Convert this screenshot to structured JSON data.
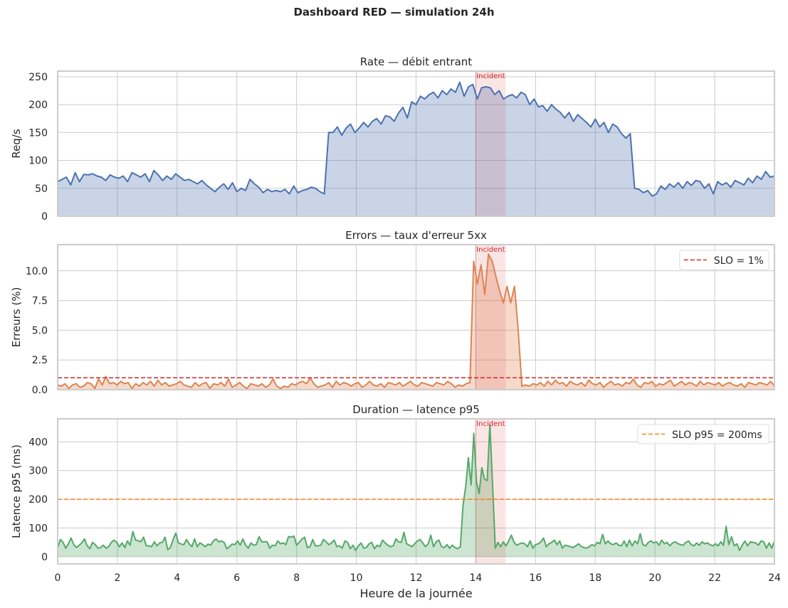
{
  "figure": {
    "title": "Dashboard RED — simulation 24h",
    "xlabel": "Heure de la journée",
    "xticks": [
      0,
      2,
      4,
      6,
      8,
      10,
      12,
      14,
      16,
      18,
      20,
      22,
      24
    ],
    "xlim": [
      0,
      24
    ],
    "incident": {
      "start": 14,
      "end": 15,
      "label": "Incident",
      "color": "#d62728"
    }
  },
  "chart_data": [
    {
      "type": "area",
      "title": "Rate — débit entrant",
      "xlabel": "",
      "ylabel": "Req/s",
      "ylim": [
        0,
        260
      ],
      "yticks": [
        0,
        50,
        100,
        150,
        200,
        250
      ],
      "ytick_labels": [
        "0",
        "50",
        "100",
        "150",
        "200",
        "250"
      ],
      "color": "#4c72b0",
      "fill": "#c8d3e5",
      "x_step_h": 0.25,
      "series": [
        {
          "name": "Rate",
          "values": [
            62,
            66,
            70,
            56,
            78,
            62,
            75,
            74,
            76,
            72,
            70,
            64,
            74,
            70,
            68,
            72,
            62,
            78,
            74,
            70,
            76,
            62,
            82,
            74,
            64,
            72,
            66,
            76,
            70,
            64,
            66,
            62,
            58,
            64,
            56,
            50,
            44,
            52,
            58,
            48,
            60,
            44,
            50,
            46,
            66,
            58,
            52,
            42,
            48,
            44,
            46,
            44,
            48,
            40,
            54,
            42,
            46,
            48,
            52,
            50,
            44,
            40,
            150,
            150,
            160,
            145,
            158,
            165,
            150,
            158,
            168,
            160,
            170,
            175,
            165,
            180,
            178,
            170,
            185,
            195,
            176,
            205,
            200,
            215,
            210,
            218,
            222,
            212,
            225,
            218,
            228,
            222,
            240,
            215,
            232,
            236,
            210,
            230,
            232,
            230,
            218,
            225,
            210,
            215,
            218,
            212,
            222,
            218,
            200,
            210,
            196,
            198,
            188,
            200,
            192,
            186,
            176,
            186,
            170,
            182,
            175,
            168,
            160,
            174,
            160,
            168,
            150,
            165,
            160,
            148,
            140,
            148,
            50,
            48,
            42,
            46,
            36,
            40,
            54,
            48,
            58,
            52,
            60,
            50,
            62,
            55,
            64,
            62,
            50,
            58,
            40,
            62,
            56,
            60,
            52,
            64,
            60,
            56,
            68,
            60,
            72,
            66,
            80,
            70,
            72
          ]
        }
      ]
    },
    {
      "type": "area",
      "title": "Errors — taux d'erreur 5xx",
      "xlabel": "",
      "ylabel": "Erreurs (%)",
      "ylim": [
        0,
        12.2
      ],
      "yticks": [
        0,
        2.5,
        5,
        7.5,
        10
      ],
      "ytick_labels": [
        "0.0",
        "2.5",
        "5.0",
        "7.5",
        "10.0"
      ],
      "color": "#dd8452",
      "fill": "#f3d1bd",
      "x_step_h": 0.125,
      "slo": {
        "value": 1,
        "label": "SLO = 1%",
        "color": "#d62728",
        "style": "dashed"
      },
      "series": [
        {
          "name": "Errors",
          "values": [
            0.4,
            0.3,
            0.5,
            0.1,
            0.4,
            0.5,
            0.2,
            0.3,
            0.6,
            0.5,
            0.1,
            0.9,
            0.4,
            1.1,
            0.5,
            0.6,
            0.4,
            0.7,
            0.5,
            0.6,
            0.1,
            0.5,
            0.3,
            0.6,
            0.4,
            0.7,
            0.3,
            0.8,
            0.4,
            0.6,
            0.3,
            0.4,
            0.5,
            0.7,
            0.4,
            0.3,
            0.2,
            0.6,
            0.3,
            0.5,
            0.6,
            0.1,
            0.5,
            0.4,
            0.6,
            0.3,
            0.9,
            0.2,
            0.4,
            0.6,
            0.3,
            0.1,
            0.5,
            0.4,
            0.3,
            0.5,
            0.2,
            0.4,
            0.9,
            0.3,
            0.1,
            0.3,
            0.2,
            0.5,
            0.4,
            0.6,
            0.7,
            0.5,
            1.0,
            0.5,
            0.2,
            0.3,
            0.4,
            0.6,
            0.2,
            0.7,
            0.4,
            0.6,
            0.5,
            0.3,
            0.5,
            0.6,
            0.2,
            0.4,
            0.7,
            0.4,
            0.3,
            0.5,
            0.2,
            0.6,
            0.5,
            0.4,
            0.6,
            0.3,
            0.5,
            0.7,
            0.4,
            0.3,
            0.6,
            0.5,
            0.4,
            0.3,
            0.6,
            0.5,
            0.4,
            0.7,
            0.5,
            0.2,
            0.4,
            0.3,
            0.5,
            0.6,
            10.8,
            8.9,
            10.5,
            8.0,
            11.4,
            10.8,
            9.5,
            8.3,
            7.3,
            8.7,
            7.3,
            8.7,
            5.0,
            0.3,
            0.4,
            0.3,
            0.5,
            0.4,
            0.6,
            0.3,
            0.7,
            0.4,
            0.8,
            0.5,
            0.6,
            0.3,
            0.7,
            0.5,
            0.4,
            0.6,
            0.3,
            0.8,
            0.5,
            0.4,
            0.6,
            0.2,
            0.5,
            0.7,
            0.4,
            0.5,
            0.3,
            0.6,
            0.5,
            0.9,
            0.4,
            0.2,
            0.6,
            0.5,
            0.7,
            0.3,
            0.5,
            0.4,
            0.6,
            0.8,
            0.3,
            0.5,
            0.7,
            0.4,
            0.6,
            0.5,
            0.3,
            0.7,
            0.4,
            0.6,
            0.5,
            0.4,
            0.6,
            0.3,
            0.5,
            0.6,
            0.4,
            0.3,
            0.5,
            0.2,
            0.6,
            0.5,
            0.4,
            0.6,
            0.5,
            0.4,
            0.7,
            0.3
          ]
        }
      ]
    },
    {
      "type": "area",
      "title": "Duration — latence p95",
      "xlabel": "Heure de la journée",
      "ylabel": "Latence p95 (ms)",
      "ylim": [
        -25,
        480
      ],
      "yticks": [
        0,
        100,
        200,
        300,
        400
      ],
      "ytick_labels": [
        "0",
        "100",
        "200",
        "300",
        "400"
      ],
      "color": "#55a868",
      "fill": "#c9e2cf",
      "x_step_h": 0.125,
      "slo": {
        "value": 200,
        "label": "SLO p95 = 200ms",
        "color": "#ff7f0e",
        "style": "dashed"
      },
      "series": [
        {
          "name": "Latence p95",
          "values": [
            30,
            60,
            50,
            30,
            45,
            65,
            42,
            32,
            40,
            48,
            62,
            38,
            28,
            50,
            42,
            30,
            32,
            40,
            30,
            35,
            50,
            58,
            50,
            35,
            48,
            32,
            55,
            40,
            88,
            58,
            56,
            52,
            68,
            38,
            38,
            35,
            52,
            38,
            48,
            50,
            68,
            25,
            32,
            60,
            82,
            48,
            44,
            42,
            60,
            45,
            35,
            62,
            35,
            48,
            42,
            35,
            44,
            40,
            55,
            62,
            52,
            55,
            50,
            28,
            35,
            44,
            42,
            55,
            40,
            62,
            40,
            30,
            48,
            40,
            42,
            70,
            52,
            52,
            52,
            30,
            40,
            38,
            55,
            45,
            48,
            42,
            70,
            68,
            72,
            40,
            50,
            62,
            68,
            32,
            35,
            60,
            38,
            38,
            40,
            60,
            52,
            42,
            48,
            58,
            35,
            38,
            30,
            55,
            50,
            28,
            40,
            22,
            38,
            48,
            30,
            32,
            45,
            50,
            28,
            40,
            35,
            58,
            48,
            40,
            35,
            38,
            62,
            52,
            50,
            85,
            45,
            40,
            35,
            45,
            55,
            60,
            48,
            35,
            45,
            75,
            35,
            52,
            58,
            35,
            32,
            42,
            30,
            40,
            32,
            28,
            35,
            180,
            245,
            345,
            250,
            430,
            260,
            220,
            310,
            270,
            265,
            460,
            250,
            30,
            50,
            35,
            52,
            38,
            55,
            75,
            50,
            40,
            45,
            48,
            45,
            35,
            55,
            30,
            42,
            45,
            52,
            65,
            35,
            45,
            50,
            58,
            42,
            55,
            30,
            40,
            38,
            35,
            32,
            38,
            45,
            36,
            32,
            30,
            35,
            42,
            38,
            50,
            45,
            78,
            45,
            55,
            45,
            42,
            48,
            40,
            38,
            55,
            35,
            58,
            38,
            55,
            45,
            80,
            42,
            38,
            50,
            55,
            48,
            52,
            40,
            58,
            45,
            50,
            38,
            48,
            52,
            46,
            42,
            40,
            50,
            55,
            42,
            38,
            48,
            40,
            52,
            45,
            48,
            42,
            38,
            45,
            38,
            52,
            40,
            106,
            42,
            70,
            38,
            45,
            22,
            40,
            55,
            38,
            52,
            50,
            48,
            40,
            55,
            52,
            30,
            48,
            30,
            55
          ]
        }
      ]
    }
  ]
}
